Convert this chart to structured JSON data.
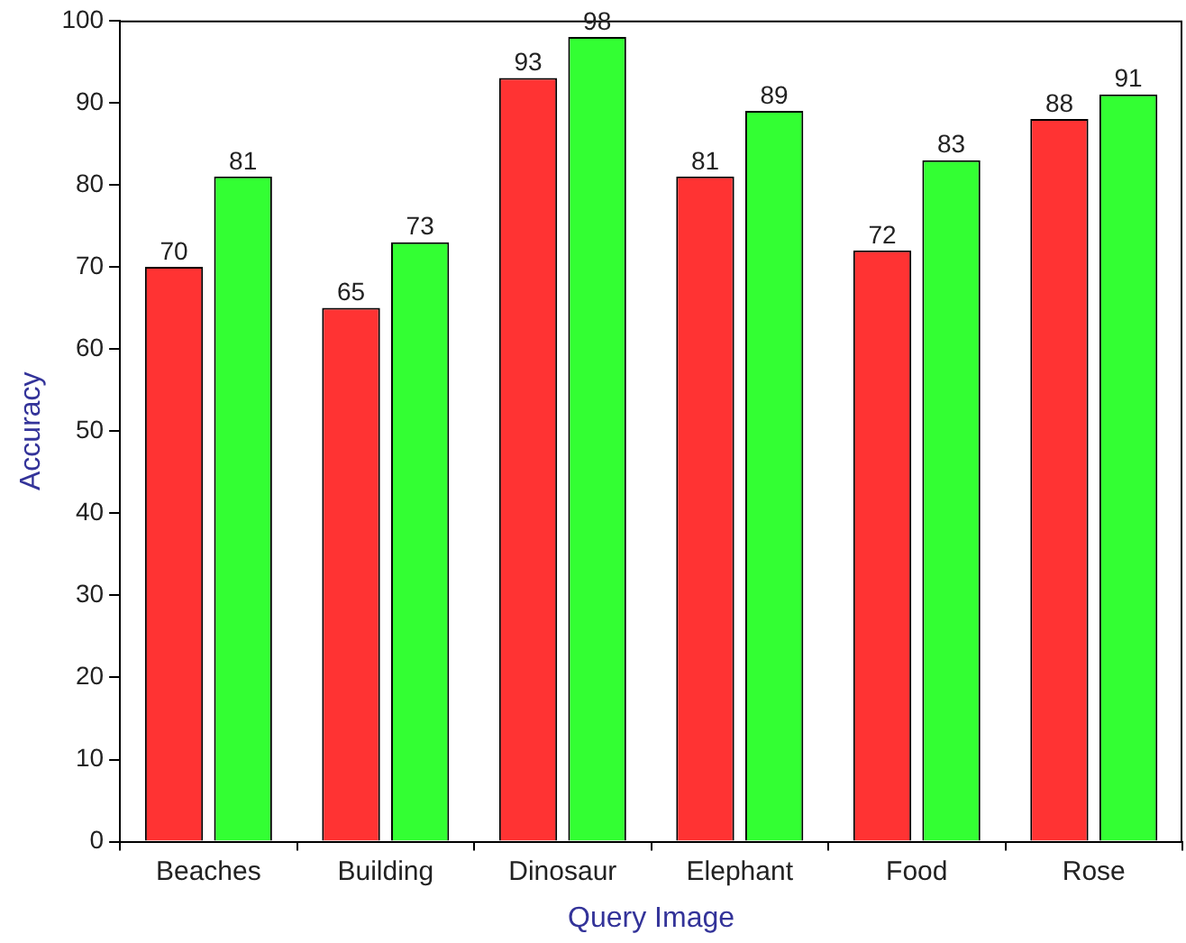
{
  "chart_data": {
    "type": "bar",
    "xlabel": "Query Image",
    "ylabel": "Accuracy",
    "categories": [
      "Beaches",
      "Building",
      "Dinosaur",
      "Elephant",
      "Food",
      "Rose"
    ],
    "series": [
      {
        "color": "#ff3333",
        "values": [
          70,
          65,
          93,
          81,
          72,
          88
        ]
      },
      {
        "color": "#33ff33",
        "values": [
          81,
          73,
          98,
          89,
          83,
          91
        ]
      }
    ],
    "ylim": [
      0,
      100
    ],
    "yticks": [
      0,
      10,
      20,
      30,
      40,
      50,
      60,
      70,
      80,
      90,
      100
    ],
    "grid": false,
    "legend": false,
    "data_labels": true
  }
}
